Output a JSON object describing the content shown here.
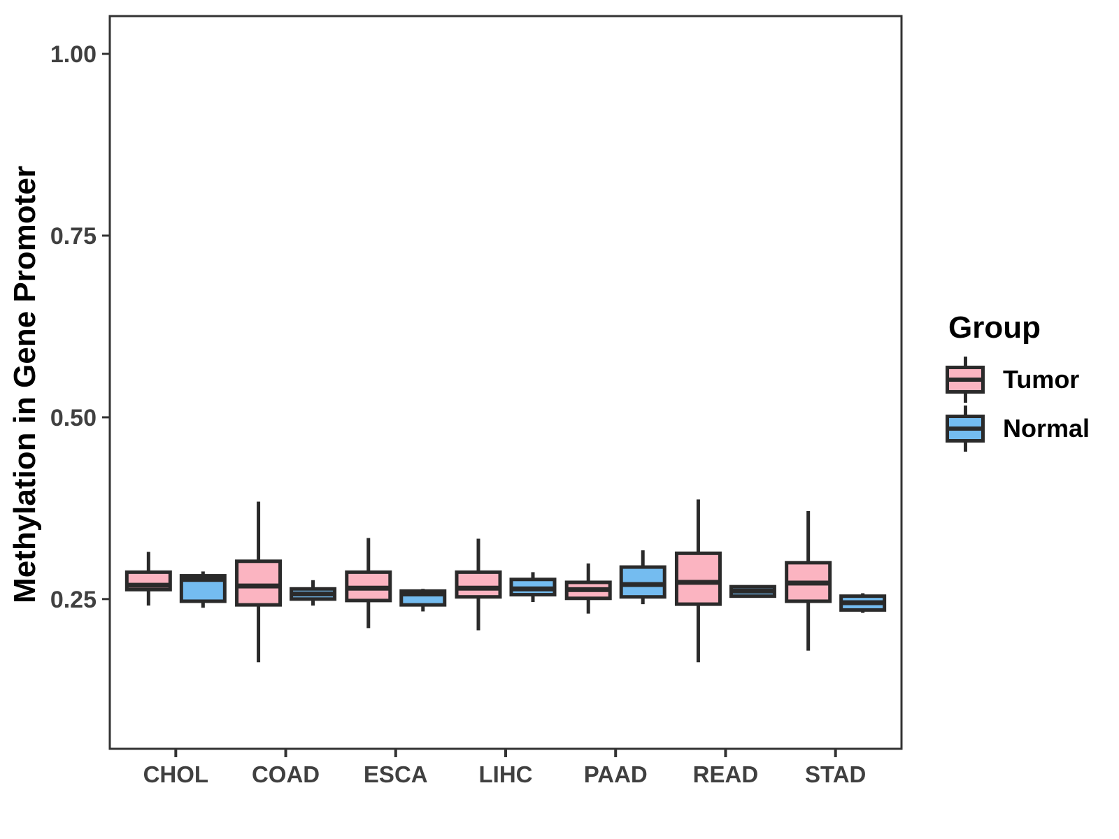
{
  "figure": {
    "legend": {
      "title": "Group",
      "entries": [
        {
          "label": "Tumor",
          "color": "#FBB4C1"
        },
        {
          "label": "Normal",
          "color": "#74BCF0"
        }
      ]
    }
  },
  "chart_data": {
    "type": "boxplot",
    "title": "",
    "xlabel": "",
    "ylabel": "Methylation in Gene Promoter",
    "categories": [
      "CHOL",
      "COAD",
      "ESCA",
      "LIHC",
      "PAAD",
      "READ",
      "STAD"
    ],
    "y_ticks": [
      {
        "label": "1.00",
        "value": 1.0
      },
      {
        "label": "0.75",
        "value": 0.75
      },
      {
        "label": "0.50",
        "value": 0.5
      },
      {
        "label": "0.25",
        "value": 0.25
      }
    ],
    "ylim": [
      0.044,
      1.052
    ],
    "grid": false,
    "legend_position": "right",
    "style": {
      "box_stroke": "#2A2A2A",
      "panel_border": "#333333",
      "axis_text_color": "#404040",
      "title_color": "#000000"
    },
    "series": [
      {
        "name": "Tumor",
        "color": "#FBB4C1",
        "boxes": [
          {
            "low": 0.241,
            "q1": 0.263,
            "median": 0.269,
            "q3": 0.287,
            "high": 0.315
          },
          {
            "low": 0.163,
            "q1": 0.242,
            "median": 0.268,
            "q3": 0.302,
            "high": 0.384
          },
          {
            "low": 0.21,
            "q1": 0.248,
            "median": 0.265,
            "q3": 0.287,
            "high": 0.334
          },
          {
            "low": 0.207,
            "q1": 0.253,
            "median": 0.265,
            "q3": 0.287,
            "high": 0.333
          },
          {
            "low": 0.23,
            "q1": 0.251,
            "median": 0.263,
            "q3": 0.273,
            "high": 0.299
          },
          {
            "low": 0.163,
            "q1": 0.243,
            "median": 0.273,
            "q3": 0.313,
            "high": 0.387
          },
          {
            "low": 0.179,
            "q1": 0.247,
            "median": 0.272,
            "q3": 0.3,
            "high": 0.371
          }
        ]
      },
      {
        "name": "Normal",
        "color": "#74BCF0",
        "boxes": [
          {
            "low": 0.238,
            "q1": 0.247,
            "median": 0.277,
            "q3": 0.282,
            "high": 0.288
          },
          {
            "low": 0.241,
            "q1": 0.25,
            "median": 0.257,
            "q3": 0.264,
            "high": 0.276
          },
          {
            "low": 0.233,
            "q1": 0.242,
            "median": 0.257,
            "q3": 0.261,
            "high": 0.264
          },
          {
            "low": 0.246,
            "q1": 0.256,
            "median": 0.264,
            "q3": 0.277,
            "high": 0.287
          },
          {
            "low": 0.243,
            "q1": 0.253,
            "median": 0.27,
            "q3": 0.294,
            "high": 0.317
          },
          {
            "low": 0.254,
            "q1": 0.254,
            "median": 0.261,
            "q3": 0.267,
            "high": 0.267
          },
          {
            "low": 0.231,
            "q1": 0.235,
            "median": 0.245,
            "q3": 0.254,
            "high": 0.258
          }
        ]
      }
    ]
  }
}
